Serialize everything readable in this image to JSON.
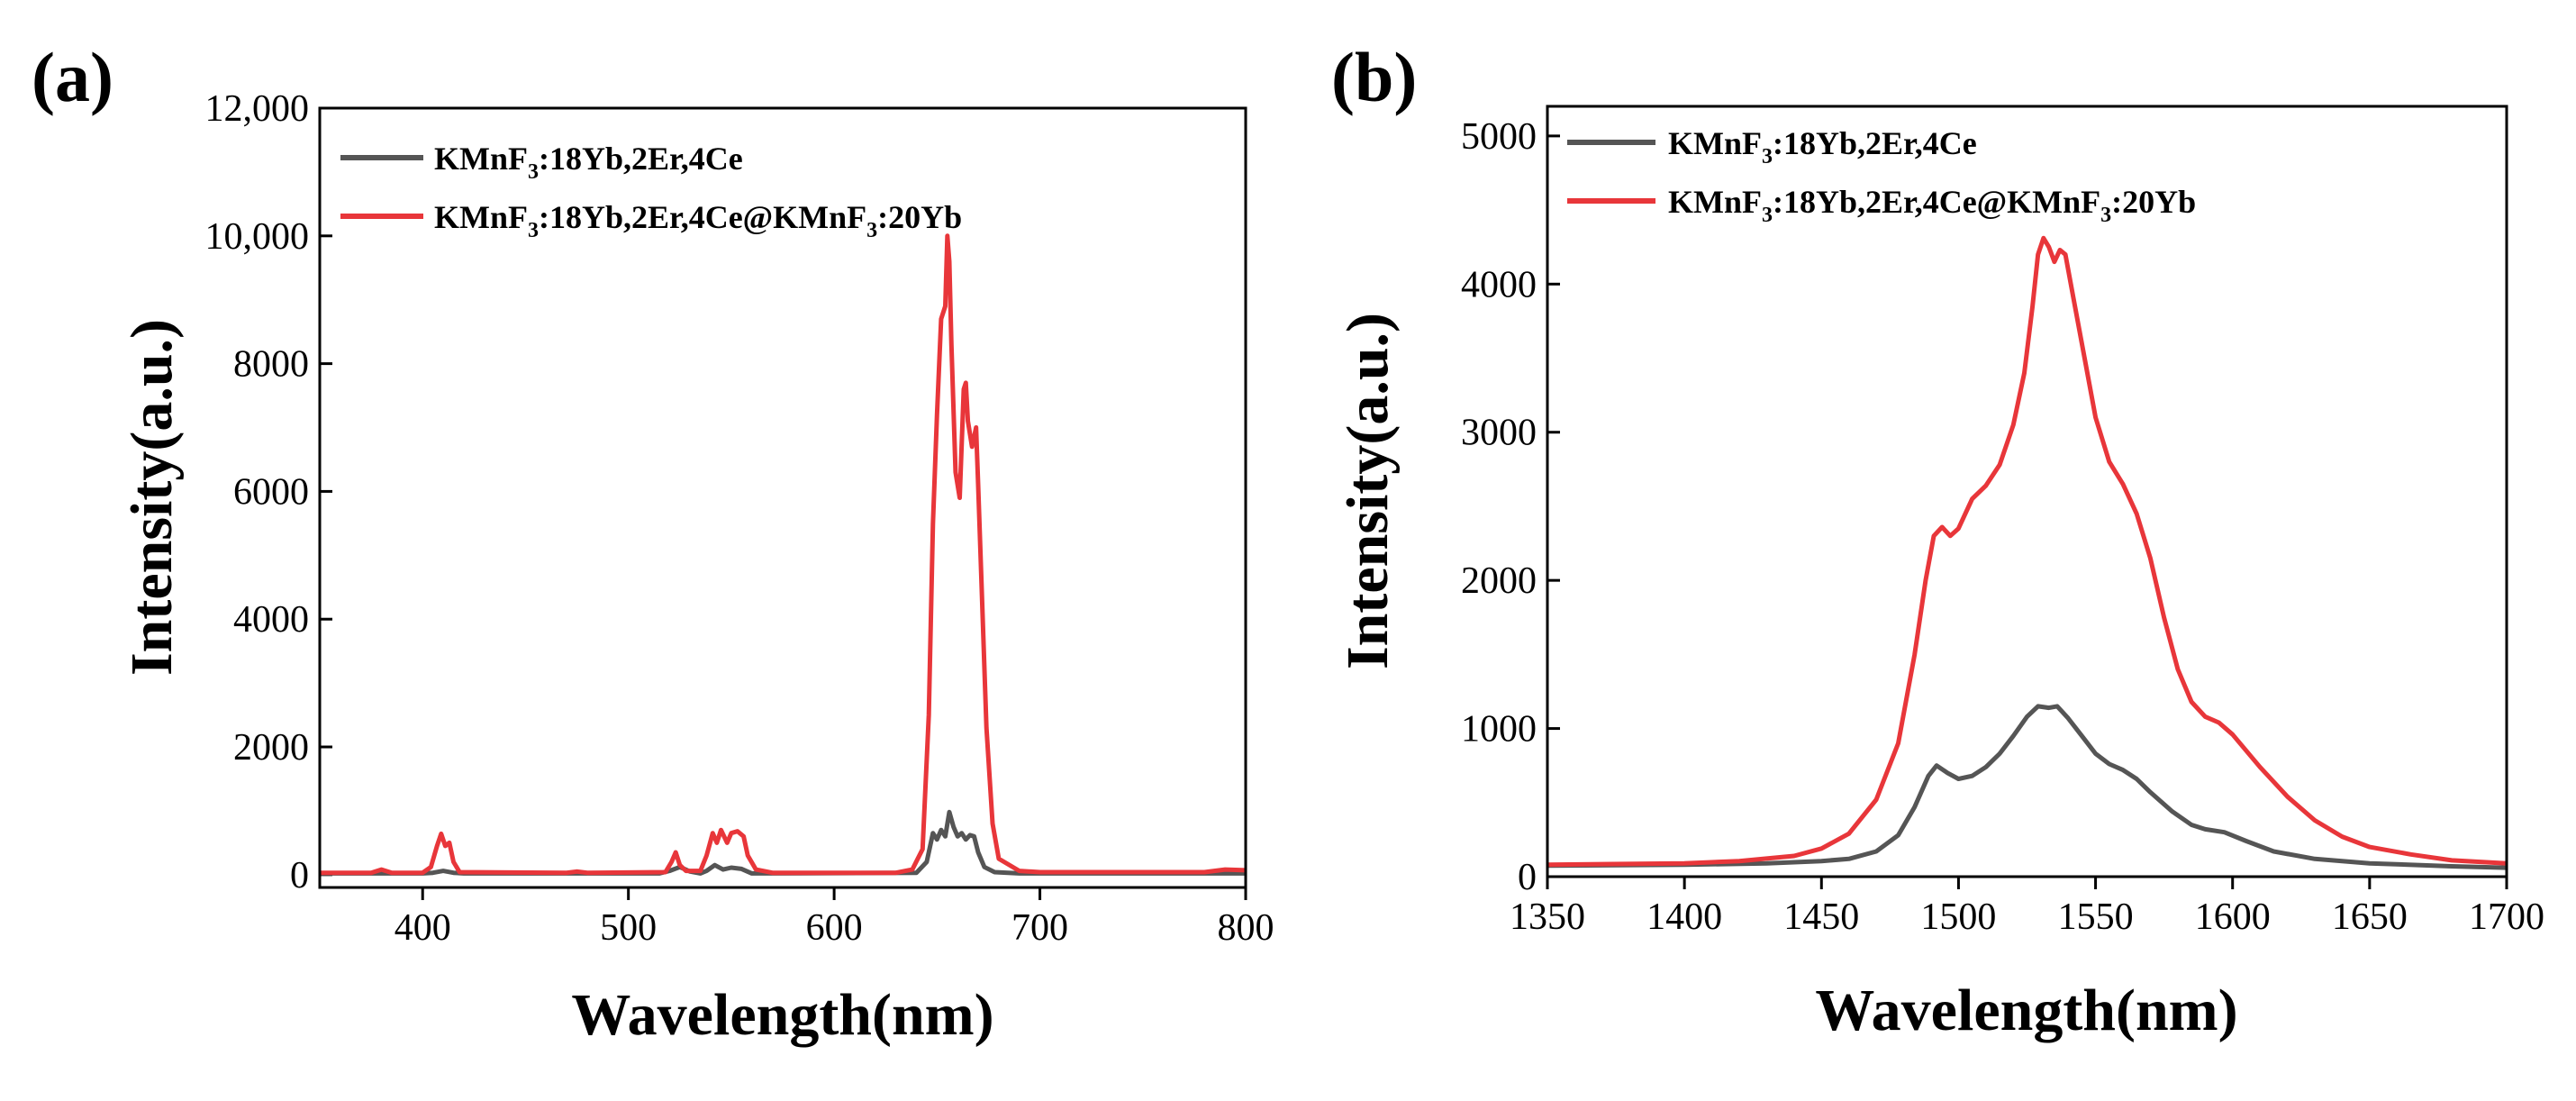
{
  "colors": {
    "series_gray": "#555555",
    "series_red": "#e8363a",
    "axis": "#000000"
  },
  "chart_data": [
    {
      "panel_label": "(a)",
      "type": "line",
      "xlabel": "Wavelength(nm)",
      "ylabel": "Intensity(a.u.)",
      "xlim": [
        350,
        800
      ],
      "ylim": [
        -200,
        12000
      ],
      "xticks": [
        400,
        500,
        600,
        700,
        800
      ],
      "xtick_labels": [
        "400",
        "500",
        "600",
        "700",
        "800"
      ],
      "yticks": [
        0,
        2000,
        4000,
        6000,
        8000,
        10000,
        12000
      ],
      "ytick_labels": [
        "0",
        "2000",
        "4000",
        "6000",
        "8000",
        "10,000",
        "12,000"
      ],
      "legend_position": "top-left",
      "series": [
        {
          "name": "KMnF3:18Yb,2Er,4Ce",
          "legend": {
            "pre": "KMnF",
            "sub": "3",
            "post": ":18Yb,2Er,4Ce"
          },
          "color": "#555555",
          "points": [
            [
              350,
              20
            ],
            [
              400,
              20
            ],
            [
              405,
              30
            ],
            [
              410,
              60
            ],
            [
              415,
              30
            ],
            [
              420,
              20
            ],
            [
              515,
              20
            ],
            [
              520,
              60
            ],
            [
              525,
              120
            ],
            [
              530,
              50
            ],
            [
              535,
              20
            ],
            [
              538,
              60
            ],
            [
              542,
              150
            ],
            [
              546,
              80
            ],
            [
              550,
              110
            ],
            [
              555,
              90
            ],
            [
              560,
              20
            ],
            [
              640,
              30
            ],
            [
              645,
              200
            ],
            [
              648,
              650
            ],
            [
              650,
              550
            ],
            [
              652,
              700
            ],
            [
              654,
              600
            ],
            [
              656,
              980
            ],
            [
              658,
              750
            ],
            [
              660,
              600
            ],
            [
              662,
              650
            ],
            [
              664,
              550
            ],
            [
              666,
              620
            ],
            [
              668,
              600
            ],
            [
              670,
              350
            ],
            [
              673,
              120
            ],
            [
              678,
              40
            ],
            [
              690,
              20
            ],
            [
              800,
              20
            ]
          ]
        },
        {
          "name": "KMnF3:18Yb,2Er,4Ce@KMnF3:20Yb",
          "legend": {
            "pre": "KMnF",
            "sub": "3",
            "post": ":18Yb,2Er,4Ce@KMnF",
            "sub2": "3",
            "post2": ":20Yb"
          },
          "color": "#e8363a",
          "points": [
            [
              350,
              30
            ],
            [
              375,
              30
            ],
            [
              380,
              80
            ],
            [
              385,
              30
            ],
            [
              400,
              30
            ],
            [
              404,
              120
            ],
            [
              407,
              450
            ],
            [
              409,
              640
            ],
            [
              411,
              450
            ],
            [
              413,
              500
            ],
            [
              415,
              200
            ],
            [
              418,
              40
            ],
            [
              470,
              30
            ],
            [
              475,
              50
            ],
            [
              480,
              30
            ],
            [
              518,
              40
            ],
            [
              521,
              200
            ],
            [
              523,
              350
            ],
            [
              525,
              150
            ],
            [
              528,
              60
            ],
            [
              535,
              60
            ],
            [
              538,
              300
            ],
            [
              541,
              650
            ],
            [
              543,
              500
            ],
            [
              545,
              700
            ],
            [
              548,
              500
            ],
            [
              550,
              650
            ],
            [
              553,
              680
            ],
            [
              556,
              600
            ],
            [
              558,
              300
            ],
            [
              562,
              80
            ],
            [
              570,
              30
            ],
            [
              630,
              30
            ],
            [
              638,
              80
            ],
            [
              643,
              400
            ],
            [
              646,
              2500
            ],
            [
              648,
              5500
            ],
            [
              650,
              7200
            ],
            [
              652,
              8700
            ],
            [
              654,
              8900
            ],
            [
              655,
              10000
            ],
            [
              656,
              9600
            ],
            [
              657,
              8300
            ],
            [
              659,
              6300
            ],
            [
              661,
              5900
            ],
            [
              663,
              7600
            ],
            [
              664,
              7700
            ],
            [
              665,
              7100
            ],
            [
              667,
              6700
            ],
            [
              669,
              7000
            ],
            [
              670,
              6100
            ],
            [
              672,
              4200
            ],
            [
              674,
              2300
            ],
            [
              677,
              800
            ],
            [
              680,
              250
            ],
            [
              690,
              60
            ],
            [
              700,
              40
            ],
            [
              780,
              40
            ],
            [
              790,
              80
            ],
            [
              800,
              70
            ]
          ]
        }
      ]
    },
    {
      "panel_label": "(b)",
      "type": "line",
      "xlabel": "Wavelength(nm)",
      "ylabel": "Intensity(a.u.)",
      "xlim": [
        1350,
        1700
      ],
      "ylim": [
        0,
        5200
      ],
      "xticks": [
        1350,
        1400,
        1450,
        1500,
        1550,
        1600,
        1650,
        1700
      ],
      "xtick_labels": [
        "1350",
        "1400",
        "1450",
        "1500",
        "1550",
        "1600",
        "1650",
        "1700"
      ],
      "yticks": [
        0,
        1000,
        2000,
        3000,
        4000,
        5000
      ],
      "ytick_labels": [
        "0",
        "1000",
        "2000",
        "3000",
        "4000",
        "5000"
      ],
      "legend_position": "top-left",
      "series": [
        {
          "name": "KMnF3:18Yb,2Er,4Ce",
          "legend": {
            "pre": "KMnF",
            "sub": "3",
            "post": ":18Yb,2Er,4Ce"
          },
          "color": "#555555",
          "points": [
            [
              1350,
              75
            ],
            [
              1400,
              80
            ],
            [
              1430,
              90
            ],
            [
              1450,
              105
            ],
            [
              1460,
              120
            ],
            [
              1470,
              170
            ],
            [
              1478,
              280
            ],
            [
              1484,
              470
            ],
            [
              1489,
              680
            ],
            [
              1492,
              750
            ],
            [
              1496,
              700
            ],
            [
              1500,
              660
            ],
            [
              1505,
              680
            ],
            [
              1510,
              740
            ],
            [
              1515,
              830
            ],
            [
              1520,
              950
            ],
            [
              1525,
              1080
            ],
            [
              1529,
              1150
            ],
            [
              1533,
              1140
            ],
            [
              1536,
              1150
            ],
            [
              1540,
              1070
            ],
            [
              1545,
              950
            ],
            [
              1550,
              830
            ],
            [
              1555,
              760
            ],
            [
              1560,
              720
            ],
            [
              1565,
              660
            ],
            [
              1570,
              570
            ],
            [
              1578,
              440
            ],
            [
              1585,
              350
            ],
            [
              1590,
              320
            ],
            [
              1597,
              300
            ],
            [
              1605,
              240
            ],
            [
              1615,
              170
            ],
            [
              1630,
              120
            ],
            [
              1650,
              90
            ],
            [
              1680,
              70
            ],
            [
              1700,
              60
            ]
          ]
        },
        {
          "name": "KMnF3:18Yb,2Er,4Ce@KMnF3:20Yb",
          "legend": {
            "pre": "KMnF",
            "sub": "3",
            "post": ":18Yb,2Er,4Ce@KMnF",
            "sub2": "3",
            "post2": ":20Yb"
          },
          "color": "#e8363a",
          "points": [
            [
              1350,
              80
            ],
            [
              1400,
              90
            ],
            [
              1420,
              105
            ],
            [
              1440,
              140
            ],
            [
              1450,
              190
            ],
            [
              1460,
              290
            ],
            [
              1470,
              520
            ],
            [
              1478,
              900
            ],
            [
              1484,
              1500
            ],
            [
              1488,
              2000
            ],
            [
              1491,
              2300
            ],
            [
              1494,
              2360
            ],
            [
              1497,
              2300
            ],
            [
              1500,
              2350
            ],
            [
              1505,
              2550
            ],
            [
              1510,
              2640
            ],
            [
              1515,
              2780
            ],
            [
              1520,
              3050
            ],
            [
              1524,
              3400
            ],
            [
              1527,
              3850
            ],
            [
              1529,
              4200
            ],
            [
              1531,
              4310
            ],
            [
              1533,
              4250
            ],
            [
              1535,
              4150
            ],
            [
              1537,
              4230
            ],
            [
              1539,
              4200
            ],
            [
              1542,
              3900
            ],
            [
              1546,
              3500
            ],
            [
              1550,
              3100
            ],
            [
              1555,
              2800
            ],
            [
              1560,
              2650
            ],
            [
              1565,
              2450
            ],
            [
              1570,
              2150
            ],
            [
              1575,
              1750
            ],
            [
              1580,
              1400
            ],
            [
              1585,
              1180
            ],
            [
              1590,
              1080
            ],
            [
              1595,
              1040
            ],
            [
              1600,
              960
            ],
            [
              1610,
              740
            ],
            [
              1620,
              540
            ],
            [
              1630,
              380
            ],
            [
              1640,
              270
            ],
            [
              1650,
              200
            ],
            [
              1665,
              150
            ],
            [
              1680,
              110
            ],
            [
              1700,
              90
            ]
          ]
        }
      ]
    }
  ]
}
